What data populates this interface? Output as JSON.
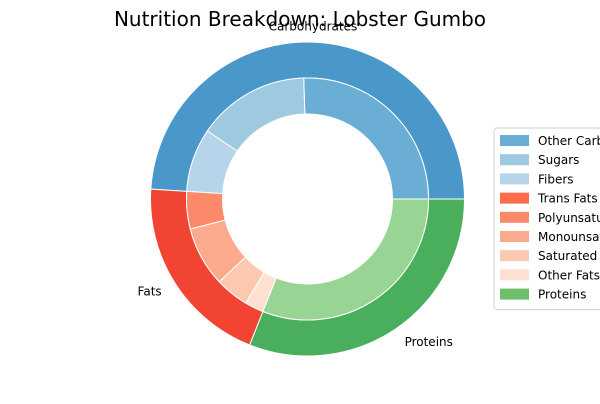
{
  "chart_data": {
    "type": "pie",
    "subtype": "nested-donut",
    "title": "Nutrition Breakdown:  Lobster Gumbo",
    "outer_ring": {
      "labels": [
        "Carbohydrates",
        "Fats",
        "Proteins"
      ],
      "values": [
        49,
        20,
        31
      ],
      "colors": [
        "#4a98c9",
        "#f14432",
        "#4aaf5d"
      ]
    },
    "inner_ring": {
      "labels": [
        "Other Carbs",
        "Sugars",
        "Fibers",
        "Trans Fats",
        "Polyunsaturated Fats",
        "Monounsaturated Fats",
        "Saturated Fats",
        "Other Fats",
        "Proteins"
      ],
      "values": [
        25.5,
        15,
        8.5,
        0,
        5,
        8,
        4.5,
        2.5,
        31
      ],
      "colors": [
        "#6aaed6",
        "#9dc9e1",
        "#b6d4ea",
        "#fb6a4a",
        "#fc8a6a",
        "#fcaa8e",
        "#fcc8b0",
        "#fee0d2",
        "#98d594"
      ]
    },
    "legend": {
      "placement": "right",
      "entries": [
        "Other Carbs",
        "Sugars",
        "Fibers",
        "Trans Fats",
        "Polyunsaturated Fats",
        "Monounsaturated Fats",
        "Saturated Fats",
        "Other Fats",
        "Proteins"
      ],
      "colors": [
        "#6aaed6",
        "#9dc9e1",
        "#b6d4ea",
        "#fd6c4b",
        "#fc8a6a",
        "#fcaa8e",
        "#fcc8b0",
        "#fee0d2",
        "#6ebe6e"
      ]
    }
  }
}
